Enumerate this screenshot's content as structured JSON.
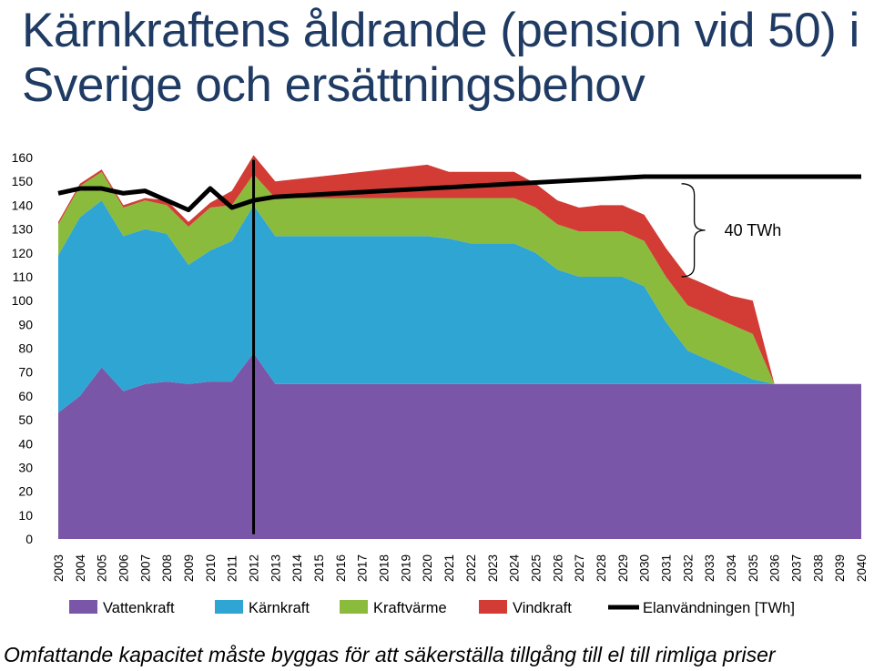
{
  "title": "Kärnkraftens åldrande (pension vid 50) i Sverige och ersättningsbehov",
  "caption": "Omfattande kapacitet måste byggas för att säkerställa tillgång till el till rimliga priser",
  "chart_data": {
    "type": "area",
    "title": "",
    "xlabel": "",
    "ylabel": "",
    "ylim": [
      0,
      160
    ],
    "yticks": [
      0,
      10,
      20,
      30,
      40,
      50,
      60,
      70,
      80,
      90,
      100,
      110,
      120,
      130,
      140,
      150,
      160
    ],
    "grid": false,
    "legend_position": "bottom",
    "x": [
      "2003",
      "2004",
      "2005",
      "2006",
      "2007",
      "2008",
      "2009",
      "2010",
      "2011",
      "2012",
      "2013",
      "2014",
      "2015",
      "2016",
      "2017",
      "2018",
      "2019",
      "2020",
      "2021",
      "2022",
      "2023",
      "2024",
      "2025",
      "2026",
      "2027",
      "2028",
      "2029",
      "2030",
      "2031",
      "2032",
      "2033",
      "2034",
      "2035",
      "2036",
      "2037",
      "2038",
      "2039",
      "2040"
    ],
    "stacked": true,
    "series": [
      {
        "name": "Vattenkraft",
        "kind": "area",
        "color": "#7a56a8",
        "values": [
          53,
          60,
          72,
          62,
          65,
          66,
          65,
          66,
          66,
          78,
          65,
          65,
          65,
          65,
          65,
          65,
          65,
          65,
          65,
          65,
          65,
          65,
          65,
          65,
          65,
          65,
          65,
          65,
          65,
          65,
          65,
          65,
          65,
          65,
          65,
          65,
          65,
          65
        ]
      },
      {
        "name": "Kärnkraft",
        "kind": "area",
        "color": "#2fa5d3",
        "values": [
          66,
          75,
          70,
          65,
          65,
          62,
          50,
          55,
          59,
          62,
          62,
          62,
          62,
          62,
          62,
          62,
          62,
          62,
          61,
          59,
          59,
          59,
          55,
          48,
          45,
          45,
          45,
          41,
          26,
          14,
          10,
          6,
          2,
          0,
          0,
          0,
          0,
          0
        ]
      },
      {
        "name": "Kraftvärme",
        "kind": "area",
        "color": "#8bbb3c",
        "values": [
          13,
          13,
          12,
          12,
          12,
          12,
          16,
          18,
          15,
          13,
          16,
          16,
          16,
          16,
          16,
          16,
          16,
          16,
          17,
          19,
          19,
          19,
          19,
          19,
          19,
          19,
          19,
          19,
          19,
          19,
          19,
          19,
          19,
          0,
          0,
          0,
          0,
          0
        ]
      },
      {
        "name": "Vindkraft",
        "kind": "area",
        "color": "#d23c35",
        "values": [
          1,
          1,
          1,
          1,
          1,
          2,
          2,
          2,
          6,
          8,
          7,
          8,
          9,
          10,
          11,
          12,
          13,
          14,
          11,
          11,
          11,
          11,
          10,
          10,
          10,
          11,
          11,
          11,
          12,
          12,
          12,
          12,
          14,
          0,
          0,
          0,
          0,
          0
        ]
      },
      {
        "name": "Elanvändningen [TWh]",
        "kind": "line",
        "color": "#000000",
        "values": [
          145,
          147,
          147,
          145,
          146,
          142,
          138,
          147,
          139,
          142,
          143.5,
          144,
          144.5,
          145,
          145.5,
          146,
          146.5,
          147,
          147.5,
          148,
          148.5,
          149,
          149.5,
          150,
          150.5,
          151,
          151.5,
          152,
          152,
          152,
          152,
          152,
          152,
          152,
          152,
          152,
          152,
          152
        ]
      }
    ],
    "vertical_marker": {
      "x": "2012",
      "ymax": 159,
      "ymin": 2
    },
    "annotation": {
      "text": "40 TWh",
      "x_year": "2030",
      "y_top": 149,
      "y_bottom": 110
    }
  }
}
